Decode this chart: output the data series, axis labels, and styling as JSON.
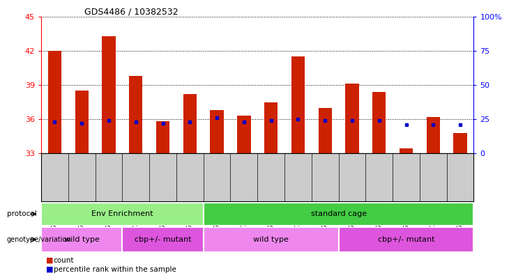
{
  "title": "GDS4486 / 10382532",
  "samples": [
    "GSM766006",
    "GSM766007",
    "GSM766008",
    "GSM766014",
    "GSM766015",
    "GSM766016",
    "GSM766001",
    "GSM766002",
    "GSM766003",
    "GSM766004",
    "GSM766005",
    "GSM766009",
    "GSM766010",
    "GSM766011",
    "GSM766012",
    "GSM766013"
  ],
  "counts": [
    42.0,
    38.5,
    43.3,
    39.8,
    35.8,
    38.2,
    36.8,
    36.3,
    37.5,
    41.5,
    37.0,
    39.1,
    38.4,
    33.4,
    36.2,
    34.8
  ],
  "percentiles": [
    23,
    22,
    24,
    23,
    22,
    23,
    26,
    23,
    24,
    25,
    24,
    24,
    24,
    21,
    21,
    21
  ],
  "y_min": 33,
  "y_max": 45,
  "y_ticks_left": [
    33,
    36,
    39,
    42,
    45
  ],
  "y_ticks_right": [
    0,
    25,
    50,
    75,
    100
  ],
  "bar_color": "#cc2200",
  "dot_color": "#0000cc",
  "bar_width": 0.5,
  "protocol_labels": [
    {
      "text": "Env Enrichment",
      "start": 0,
      "end": 5,
      "color": "#99ee88"
    },
    {
      "text": "standard cage",
      "start": 6,
      "end": 15,
      "color": "#44cc44"
    }
  ],
  "genotype_labels": [
    {
      "text": "wild type",
      "start": 0,
      "end": 2,
      "color": "#ee88ee"
    },
    {
      "text": "cbp+/- mutant",
      "start": 3,
      "end": 5,
      "color": "#dd55dd"
    },
    {
      "text": "wild type",
      "start": 6,
      "end": 10,
      "color": "#ee88ee"
    },
    {
      "text": "cbp+/- mutant",
      "start": 11,
      "end": 15,
      "color": "#dd55dd"
    }
  ],
  "legend_count_color": "#cc2200",
  "legend_dot_color": "#0000cc",
  "grid_color": "black",
  "grid_style": "dotted",
  "xtick_bg_color": "#cccccc",
  "protocol_row_label": "protocol",
  "genotype_row_label": "genotype/variation",
  "legend_count_text": "count",
  "legend_pct_text": "percentile rank within the sample"
}
